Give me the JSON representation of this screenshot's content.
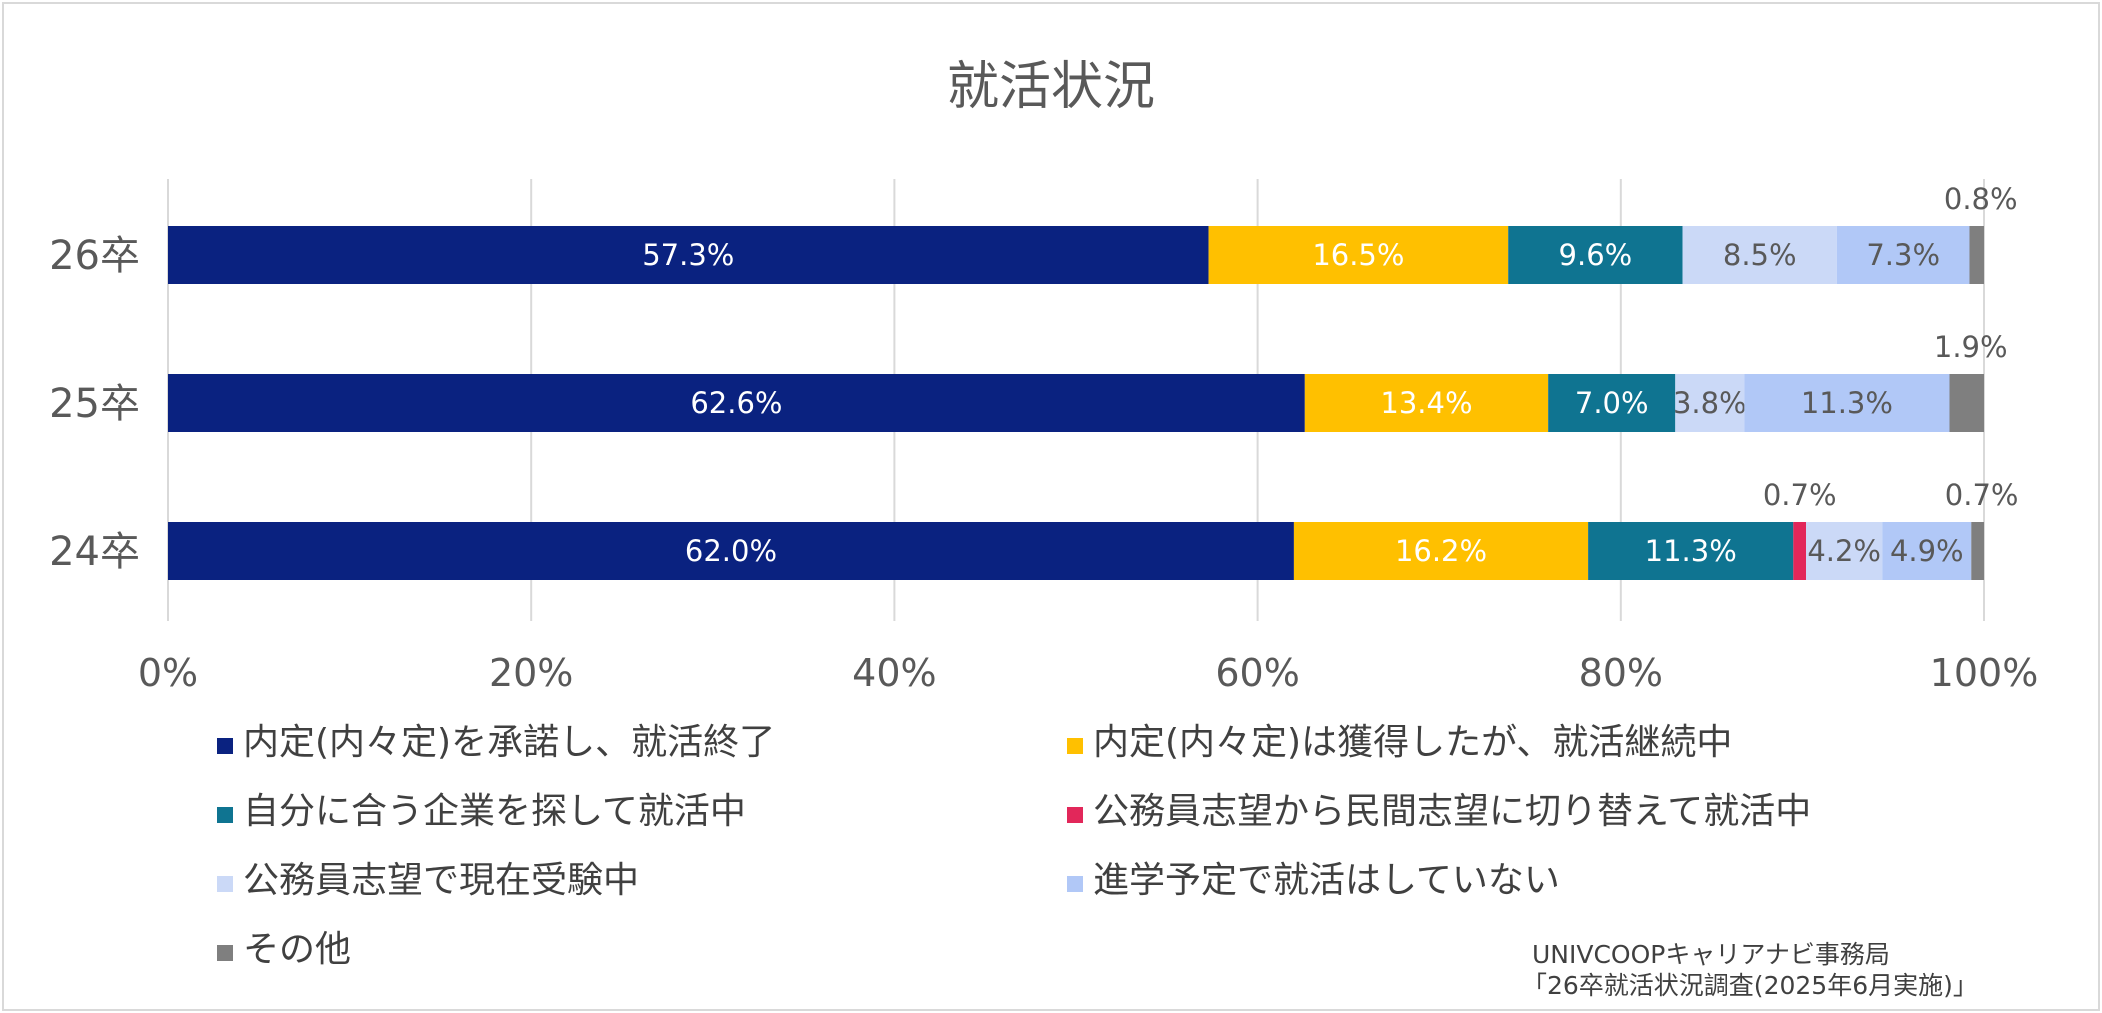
{
  "chart_data": {
    "type": "bar",
    "orientation": "horizontal",
    "stacked": "percent",
    "title": "就活状況",
    "categories": [
      "26卒",
      "25卒",
      "24卒"
    ],
    "series": [
      {
        "name": "内定(内々定)を承諾し、就活終了",
        "color": "#0a2280",
        "values": [
          57.3,
          62.6,
          62.0
        ],
        "labels": [
          "57.3%",
          "62.6%",
          "62.0%"
        ]
      },
      {
        "name": "内定(内々定)は獲得したが、就活継続中",
        "color": "#ffc000",
        "values": [
          16.5,
          13.4,
          16.2
        ],
        "labels": [
          "16.5%",
          "13.4%",
          "16.2%"
        ]
      },
      {
        "name": "自分に合う企業を探して就活中",
        "color": "#0f7491",
        "values": [
          9.6,
          7.0,
          11.3
        ],
        "labels": [
          "9.6%",
          "7.0%",
          "11.3%"
        ]
      },
      {
        "name": "公務員志望から民間志望に切り替えて就活中",
        "color": "#e2275a",
        "values": [
          0,
          0,
          0.7
        ],
        "labels": [
          "",
          "",
          "0.7%"
        ]
      },
      {
        "name": "公務員志望で現在受験中",
        "color": "#cbd9f7",
        "values": [
          8.5,
          3.8,
          4.2
        ],
        "labels": [
          "8.5%",
          "3.8%",
          "4.2%"
        ]
      },
      {
        "name": "進学予定で就活はしていない",
        "color": "#b1c8f7",
        "values": [
          7.3,
          11.3,
          4.9
        ],
        "labels": [
          "7.3%",
          "11.3%",
          "4.9%"
        ]
      },
      {
        "name": "その他",
        "color": "#7f7f7f",
        "values": [
          0.8,
          1.9,
          0.7
        ],
        "labels": [
          "0.8%",
          "1.9%",
          "0.7%"
        ]
      }
    ],
    "xlim": [
      0,
      100
    ],
    "x_ticks": [
      "0%",
      "20%",
      "40%",
      "60%",
      "80%",
      "100%"
    ],
    "x_tick_values": [
      0,
      20,
      40,
      60,
      80,
      100
    ],
    "grid": true,
    "legend_position": "bottom"
  },
  "source": {
    "line1": "UNIVCOOPキャリアナビ事務局",
    "line2": "「26卒就活状況調査(2025年6月実施)」"
  }
}
